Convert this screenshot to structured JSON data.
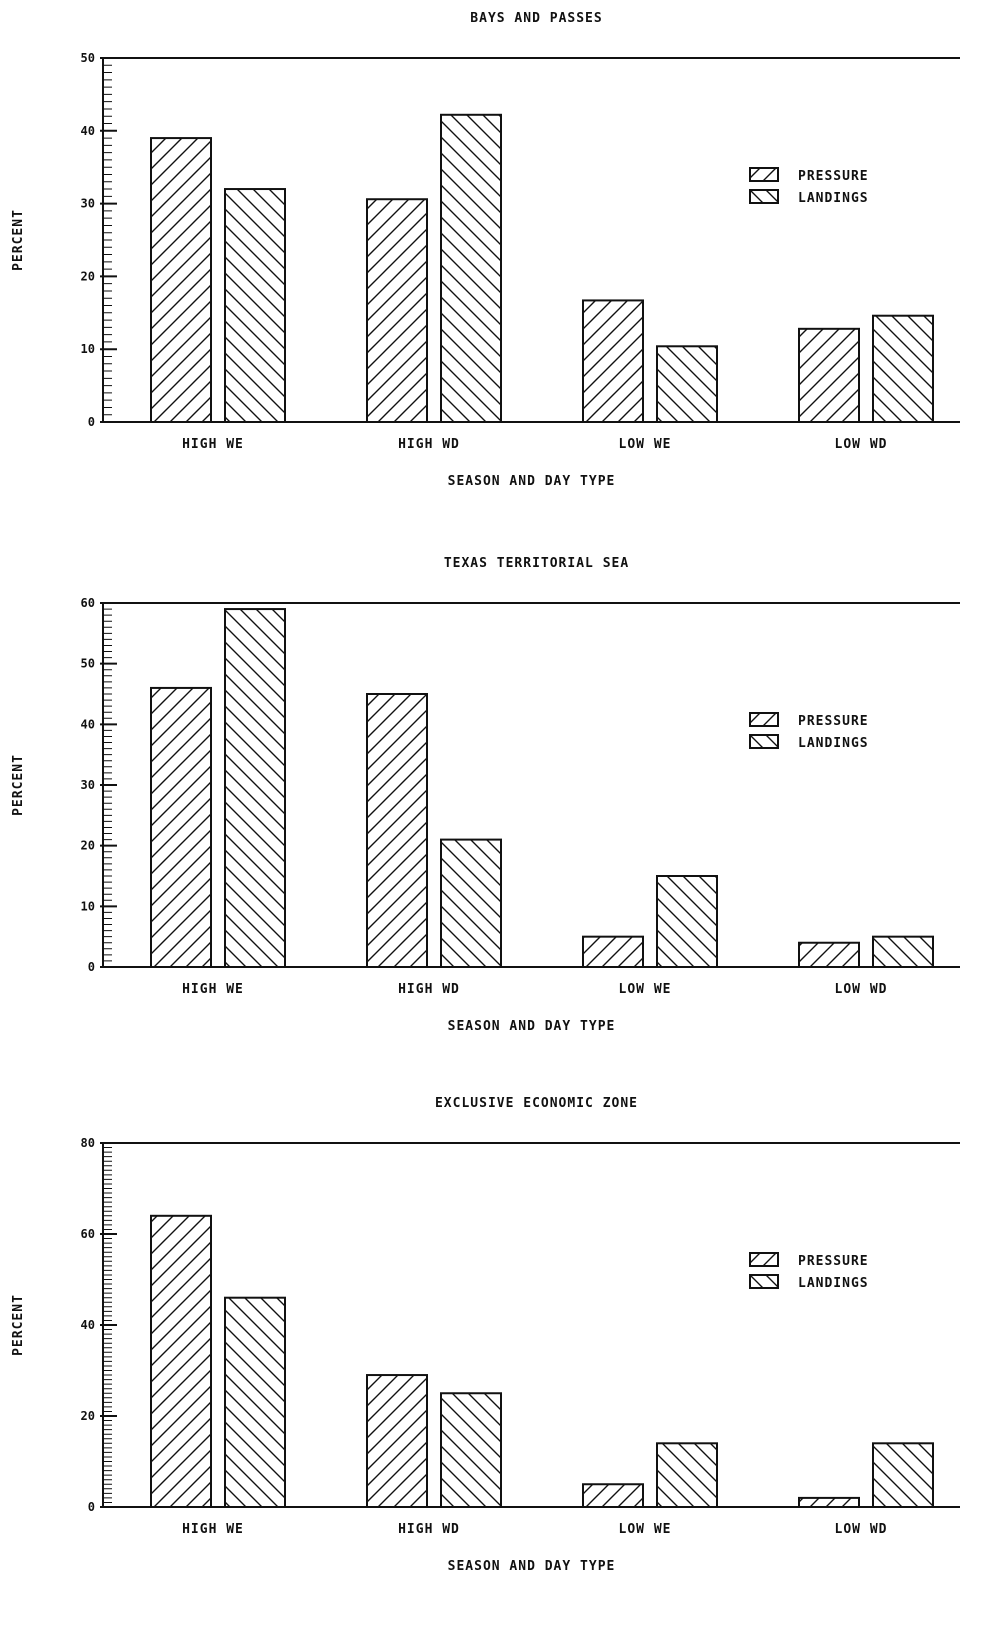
{
  "chart_data": [
    {
      "type": "bar",
      "title": "BAYS AND PASSES",
      "xlabel": "SEASON AND DAY TYPE",
      "ylabel": "PERCENT",
      "ylim": [
        0,
        50
      ],
      "yticks": [
        0,
        10,
        20,
        30,
        40,
        50
      ],
      "categories": [
        "HIGH WE",
        "HIGH WD",
        "LOW WE",
        "LOW WD"
      ],
      "series": [
        {
          "name": "PRESSURE",
          "values": [
            39,
            30.6,
            16.7,
            12.8
          ]
        },
        {
          "name": "LANDINGS",
          "values": [
            32,
            42.2,
            10.4,
            14.6
          ]
        }
      ],
      "legend": "right",
      "grid": false
    },
    {
      "type": "bar",
      "title": "TEXAS TERRITORIAL SEA",
      "xlabel": "SEASON AND DAY TYPE",
      "ylabel": "PERCENT",
      "ylim": [
        0,
        60
      ],
      "yticks": [
        0,
        10,
        20,
        30,
        40,
        50,
        60
      ],
      "categories": [
        "HIGH WE",
        "HIGH WD",
        "LOW WE",
        "LOW WD"
      ],
      "series": [
        {
          "name": "PRESSURE",
          "values": [
            46,
            45,
            5,
            4
          ]
        },
        {
          "name": "LANDINGS",
          "values": [
            59,
            21,
            15,
            5
          ]
        }
      ],
      "legend": "right",
      "grid": false
    },
    {
      "type": "bar",
      "title": "EXCLUSIVE ECONOMIC ZONE",
      "xlabel": "SEASON AND DAY TYPE",
      "ylabel": "PERCENT",
      "ylim": [
        0,
        80
      ],
      "yticks": [
        0,
        20,
        40,
        60,
        80
      ],
      "categories": [
        "HIGH WE",
        "HIGH WD",
        "LOW WE",
        "LOW WD"
      ],
      "series": [
        {
          "name": "PRESSURE",
          "values": [
            64,
            29,
            5,
            2
          ]
        },
        {
          "name": "LANDINGS",
          "values": [
            46,
            25,
            14,
            14
          ]
        }
      ],
      "legend": "right",
      "grid": false
    }
  ]
}
